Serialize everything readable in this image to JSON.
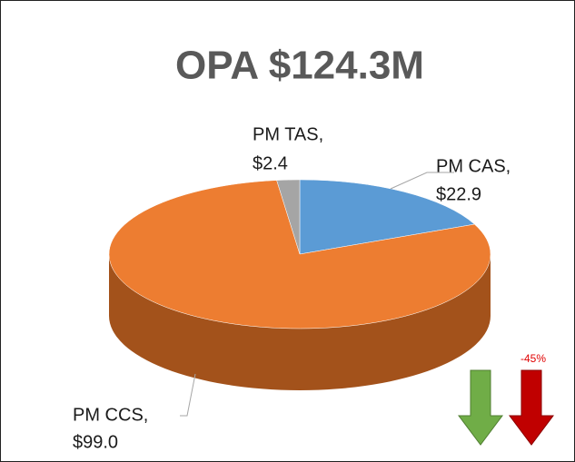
{
  "chart_data": {
    "type": "pie",
    "title": "OPA $124.3M",
    "categories": [
      "PM CAS,",
      "PM CCS,",
      "PM TAS,"
    ],
    "values": [
      22.9,
      99.0,
      2.4
    ],
    "value_labels": [
      "$22.9",
      "$99.0",
      "$2.4"
    ],
    "colors": [
      "#5b9bd5",
      "#ed7d31",
      "#a5a5a5"
    ],
    "side_colors": [
      "#3f6f9c",
      "#a3521b",
      "#727272"
    ],
    "annotation": "-45%"
  }
}
